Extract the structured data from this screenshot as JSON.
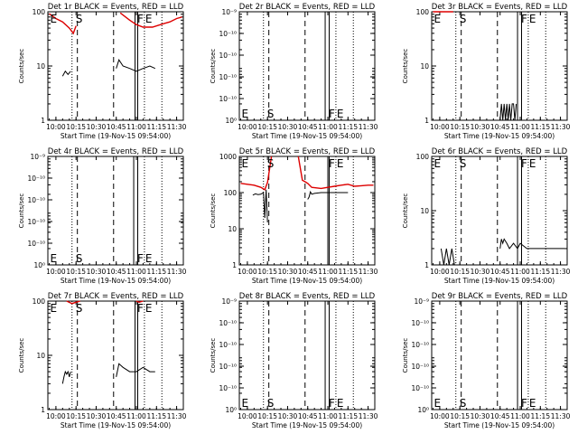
{
  "figure": {
    "xlabel": "Start Time (19-Nov-15 09:54:00)",
    "ylabel": "Counts/sec",
    "colors": {
      "events": "#000000",
      "lld": "#dd0000",
      "axes": "#000000"
    }
  },
  "chart_data": [
    {
      "type": "line",
      "title": "Det 1r BLACK = Events, RED = LLD",
      "x_ticks": [
        "10:00",
        "10:15",
        "10:30",
        "10:45",
        "11:00",
        "11:15",
        "11:30"
      ],
      "xlim": [
        "09:54",
        "11:35"
      ],
      "yscale": "log",
      "ylim": [
        1,
        100
      ],
      "y_ticks": [
        "1",
        "10",
        "100"
      ],
      "markers": {
        "solid": [
          "10:59",
          "11:01"
        ],
        "dashed": [
          "10:16",
          "10:43"
        ],
        "dotted": [
          "10:12",
          "11:06",
          "11:19"
        ]
      },
      "flags": [
        {
          "text": "E",
          "x": "09:55",
          "pos": "top"
        },
        {
          "text": "S",
          "x": "10:14",
          "pos": "top"
        },
        {
          "text": "F",
          "x": "11:00",
          "pos": "top"
        },
        {
          "text": "E",
          "x": "11:06",
          "pos": "top"
        }
      ],
      "series": [
        {
          "role": "events",
          "segments": [
            {
              "x": [
                "10:05",
                "10:07",
                "10:09",
                "10:11"
              ],
              "y": [
                6.5,
                8,
                7,
                8
              ]
            },
            {
              "x": [
                "10:45",
                "10:47",
                "10:50",
                "10:55",
                "11:00",
                "11:05",
                "11:10",
                "11:14"
              ],
              "y": [
                9,
                13,
                10,
                9,
                8,
                9,
                10,
                9
              ]
            }
          ]
        },
        {
          "role": "lld",
          "segments": [
            {
              "x": [
                "09:55",
                "10:00",
                "10:05",
                "10:10",
                "10:13",
                "10:15"
              ],
              "y": [
                92,
                75,
                65,
                50,
                40,
                55
              ]
            },
            {
              "x": [
                "10:48",
                "10:55",
                "11:00",
                "11:05",
                "11:12",
                "11:20",
                "11:25",
                "11:30",
                "11:34"
              ],
              "y": [
                95,
                70,
                58,
                52,
                52,
                60,
                65,
                75,
                80
              ]
            }
          ]
        }
      ]
    },
    {
      "type": "line",
      "title": "Det 2r BLACK = Events, RED = LLD",
      "x_ticks": [
        "10:00",
        "10:15",
        "10:30",
        "10:45",
        "11:00",
        "11:15",
        "11:30"
      ],
      "xlim": [
        "09:54",
        "11:35"
      ],
      "yscale": "log",
      "ylim": [
        1,
        100
      ],
      "y_ticks": [
        "10⁰",
        "10⁻¹⁰",
        "10⁻¹⁰",
        "10⁻¹⁰",
        "10⁻¹⁰",
        "10⁻⁹"
      ],
      "markers": {
        "solid": [
          "10:58",
          "11:01"
        ],
        "dashed": [
          "10:16",
          "10:43"
        ],
        "dotted": [
          "10:12",
          "11:06",
          "11:19"
        ]
      },
      "flags": [
        {
          "text": "E",
          "x": "09:55",
          "pos": "bottom"
        },
        {
          "text": "S",
          "x": "10:14",
          "pos": "bottom"
        },
        {
          "text": "F",
          "x": "11:00",
          "pos": "bottom"
        },
        {
          "text": "E",
          "x": "11:06",
          "pos": "bottom"
        }
      ],
      "series": []
    },
    {
      "type": "line",
      "title": "Det 3r BLACK = Events, RED = LLD",
      "x_ticks": [
        "10:00",
        "10:15",
        "10:30",
        "10:45",
        "11:00",
        "11:15",
        "11:30"
      ],
      "xlim": [
        "09:54",
        "11:35"
      ],
      "yscale": "log",
      "ylim": [
        1,
        100
      ],
      "y_ticks": [
        "1",
        "10",
        "100"
      ],
      "markers": {
        "solid": [
          "10:58",
          "11:01"
        ],
        "dashed": [
          "10:16",
          "10:43"
        ],
        "dotted": [
          "10:12",
          "11:06",
          "11:19"
        ]
      },
      "flags": [
        {
          "text": "E",
          "x": "09:55",
          "pos": "top"
        },
        {
          "text": "S",
          "x": "10:14",
          "pos": "top"
        },
        {
          "text": "F",
          "x": "11:00",
          "pos": "top"
        },
        {
          "text": "E",
          "x": "11:06",
          "pos": "top"
        }
      ],
      "series": [
        {
          "role": "events",
          "segments": [
            {
              "x": [
                "10:45",
                "10:46",
                "10:47",
                "10:48",
                "10:49",
                "10:50",
                "10:51",
                "10:52",
                "10:53",
                "10:54",
                "10:55",
                "10:56",
                "10:57"
              ],
              "y": [
                1,
                2,
                1,
                2,
                1,
                2,
                1,
                2,
                1,
                2,
                2,
                1,
                2
              ]
            }
          ]
        },
        {
          "role": "lld",
          "segments": [
            {
              "x": [
                "09:55",
                "10:00",
                "10:05",
                "10:10"
              ],
              "y": [
                100,
                100,
                100,
                100
              ]
            }
          ]
        }
      ]
    },
    {
      "type": "line",
      "title": "Det 4r BLACK = Events, RED = LLD",
      "x_ticks": [
        "10:00",
        "10:15",
        "10:30",
        "10:45",
        "11:00",
        "11:15",
        "11:30"
      ],
      "xlim": [
        "09:54",
        "11:35"
      ],
      "yscale": "log",
      "ylim": [
        1,
        100
      ],
      "y_ticks": [
        "10⁰",
        "10⁻¹⁰",
        "10⁻¹⁰",
        "10⁻¹⁰",
        "10⁻¹⁰",
        "10⁻⁹"
      ],
      "markers": {
        "solid": [
          "10:58",
          "11:01"
        ],
        "dashed": [
          "10:16",
          "10:43"
        ],
        "dotted": [
          "10:12",
          "11:06",
          "11:19"
        ]
      },
      "flags": [
        {
          "text": "E",
          "x": "09:55",
          "pos": "bottom"
        },
        {
          "text": "S",
          "x": "10:14",
          "pos": "bottom"
        },
        {
          "text": "F",
          "x": "11:00",
          "pos": "bottom"
        },
        {
          "text": "E",
          "x": "11:06",
          "pos": "bottom"
        }
      ],
      "series": []
    },
    {
      "type": "line",
      "title": "Det 5r BLACK = Events, RED = LLD",
      "x_ticks": [
        "10:00",
        "10:15",
        "10:30",
        "10:45",
        "11:00",
        "11:15",
        "11:30"
      ],
      "xlim": [
        "09:54",
        "11:35"
      ],
      "yscale": "log",
      "ylim": [
        1,
        1000
      ],
      "y_ticks": [
        "1",
        "10",
        "100",
        "1000"
      ],
      "markers": {
        "solid": [
          "11:00",
          "11:01"
        ],
        "dashed": [
          "10:16",
          "10:43"
        ],
        "dotted": [
          "10:12",
          "11:06",
          "11:19"
        ]
      },
      "flags": [
        {
          "text": "E",
          "x": "09:55",
          "pos": "top"
        },
        {
          "text": "S",
          "x": "10:14",
          "pos": "top"
        },
        {
          "text": "F",
          "x": "11:00",
          "pos": "top"
        },
        {
          "text": "E",
          "x": "11:06",
          "pos": "top"
        }
      ],
      "series": [
        {
          "role": "events",
          "segments": [
            {
              "x": [
                "10:04",
                "10:06",
                "10:08",
                "10:10",
                "10:12",
                "10:13",
                "10:14",
                "10:15"
              ],
              "y": [
                85,
                92,
                88,
                90,
                100,
                20,
                120,
                15
              ]
            },
            {
              "x": [
                "10:45",
                "10:46",
                "10:47",
                "10:48",
                "10:50",
                "10:55",
                "11:00",
                "11:05",
                "11:10",
                "11:15"
              ],
              "y": [
                65,
                75,
                105,
                90,
                95,
                100,
                100,
                100,
                100,
                100
              ]
            }
          ]
        },
        {
          "role": "lld",
          "segments": [
            {
              "x": [
                "09:55",
                "10:00",
                "10:05",
                "10:10",
                "10:13",
                "10:15",
                "10:18"
              ],
              "y": [
                180,
                170,
                160,
                140,
                120,
                190,
                1000
              ]
            },
            {
              "x": [
                "10:38",
                "10:41",
                "10:43",
                "10:45",
                "10:48",
                "10:55",
                "11:00",
                "11:05",
                "11:10",
                "11:15",
                "11:20",
                "11:25",
                "11:30",
                "11:34"
              ],
              "y": [
                1000,
                220,
                200,
                180,
                140,
                130,
                140,
                150,
                160,
                170,
                150,
                155,
                160,
                160
              ]
            }
          ]
        }
      ]
    },
    {
      "type": "line",
      "title": "Det 6r BLACK = Events, RED = LLD",
      "x_ticks": [
        "10:00",
        "10:15",
        "10:30",
        "10:45",
        "11:00",
        "11:15",
        "11:30"
      ],
      "xlim": [
        "09:54",
        "11:35"
      ],
      "yscale": "log",
      "ylim": [
        1,
        100
      ],
      "y_ticks": [
        "1",
        "10",
        "100"
      ],
      "markers": {
        "solid": [
          "10:58",
          "11:01"
        ],
        "dashed": [
          "10:16",
          "10:43"
        ],
        "dotted": [
          "10:12",
          "11:06",
          "11:19"
        ]
      },
      "flags": [
        {
          "text": "E",
          "x": "09:55",
          "pos": "top"
        },
        {
          "text": "S",
          "x": "10:14",
          "pos": "top"
        },
        {
          "text": "F",
          "x": "11:00",
          "pos": "top"
        },
        {
          "text": "E",
          "x": "11:06",
          "pos": "top"
        }
      ],
      "series": [
        {
          "role": "events",
          "segments": [
            {
              "x": [
                "10:01",
                "10:03",
                "10:05",
                "10:07",
                "10:09",
                "10:11"
              ],
              "y": [
                2,
                1,
                2,
                1,
                2,
                1
              ]
            },
            {
              "x": [
                "10:45",
                "10:46",
                "10:47",
                "10:48",
                "10:50",
                "10:52",
                "10:55",
                "10:58",
                "11:00",
                "11:05",
                "11:10",
                "11:20",
                "11:33"
              ],
              "y": [
                2,
                3,
                2.5,
                3,
                2.5,
                2,
                2.5,
                2,
                2.5,
                2,
                2,
                2,
                2
              ]
            }
          ]
        }
      ]
    },
    {
      "type": "line",
      "title": "Det 7r BLACK = Events, RED = LLD",
      "x_ticks": [
        "10:00",
        "10:15",
        "10:30",
        "10:45",
        "11:00",
        "11:15",
        "11:30"
      ],
      "xlim": [
        "09:54",
        "11:35"
      ],
      "yscale": "log",
      "ylim": [
        1,
        100
      ],
      "y_ticks": [
        "1",
        "10",
        "100"
      ],
      "markers": {
        "solid": [
          "10:59",
          "11:01"
        ],
        "dashed": [
          "10:16",
          "10:43"
        ],
        "dotted": [
          "10:12",
          "11:06",
          "11:19"
        ]
      },
      "flags": [
        {
          "text": "E",
          "x": "09:55",
          "pos": "top"
        },
        {
          "text": "S",
          "x": "10:14",
          "pos": "top"
        },
        {
          "text": "F",
          "x": "11:00",
          "pos": "top"
        },
        {
          "text": "E",
          "x": "11:06",
          "pos": "top"
        }
      ],
      "series": [
        {
          "role": "events",
          "segments": [
            {
              "x": [
                "10:05",
                "10:06",
                "10:07",
                "10:08",
                "10:09",
                "10:10",
                "10:11"
              ],
              "y": [
                3,
                4,
                5,
                4.5,
                5,
                4,
                5
              ]
            },
            {
              "x": [
                "10:45",
                "10:47",
                "10:50",
                "10:55",
                "11:00",
                "11:05",
                "11:10",
                "11:14"
              ],
              "y": [
                4,
                7,
                6,
                5,
                5,
                6,
                5,
                5
              ]
            }
          ]
        },
        {
          "role": "lld",
          "segments": [
            {
              "x": [
                "10:08",
                "10:12",
                "10:15",
                "10:18"
              ],
              "y": [
                100,
                90,
                95,
                100
              ]
            },
            {
              "x": [
                "11:00",
                "11:02",
                "11:05"
              ],
              "y": [
                100,
                95,
                100
              ]
            }
          ]
        }
      ]
    },
    {
      "type": "line",
      "title": "Det 8r BLACK = Events, RED = LLD",
      "x_ticks": [
        "10:00",
        "10:15",
        "10:30",
        "10:45",
        "11:00",
        "11:15",
        "11:30"
      ],
      "xlim": [
        "09:54",
        "11:35"
      ],
      "yscale": "log",
      "ylim": [
        1,
        100
      ],
      "y_ticks": [
        "10⁰",
        "10⁻¹⁰",
        "10⁻¹⁰",
        "10⁻¹⁰",
        "10⁻¹⁰",
        "10⁻⁹"
      ],
      "markers": {
        "solid": [
          "10:58",
          "11:01"
        ],
        "dashed": [
          "10:16",
          "10:43"
        ],
        "dotted": [
          "10:12",
          "11:06",
          "11:19"
        ]
      },
      "flags": [
        {
          "text": "E",
          "x": "09:55",
          "pos": "bottom"
        },
        {
          "text": "S",
          "x": "10:14",
          "pos": "bottom"
        },
        {
          "text": "F",
          "x": "11:00",
          "pos": "bottom"
        },
        {
          "text": "E",
          "x": "11:06",
          "pos": "bottom"
        }
      ],
      "series": []
    },
    {
      "type": "line",
      "title": "Det 9r BLACK = Events, RED = LLD",
      "x_ticks": [
        "10:00",
        "10:15",
        "10:30",
        "10:45",
        "11:00",
        "11:15",
        "11:30"
      ],
      "xlim": [
        "09:54",
        "11:35"
      ],
      "yscale": "log",
      "ylim": [
        1,
        100
      ],
      "y_ticks": [
        "10⁰",
        "10⁻¹⁰",
        "10⁻¹⁰",
        "10⁻¹⁰",
        "10⁻¹⁰",
        "10⁻⁹"
      ],
      "markers": {
        "solid": [
          "10:58",
          "11:01"
        ],
        "dashed": [
          "10:16",
          "10:43"
        ],
        "dotted": [
          "10:12",
          "11:06",
          "11:19"
        ]
      },
      "flags": [
        {
          "text": "E",
          "x": "09:55",
          "pos": "bottom"
        },
        {
          "text": "S",
          "x": "10:14",
          "pos": "bottom"
        },
        {
          "text": "F",
          "x": "11:00",
          "pos": "bottom"
        },
        {
          "text": "E",
          "x": "11:06",
          "pos": "bottom"
        }
      ],
      "series": []
    }
  ]
}
